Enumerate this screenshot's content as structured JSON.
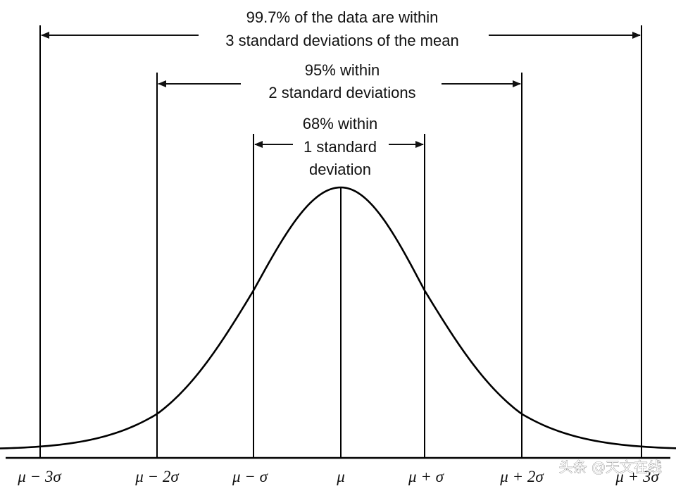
{
  "chart_data": {
    "type": "line",
    "title": "",
    "xlabel": "",
    "ylabel": "",
    "xlim": [
      -3.55,
      3.55
    ],
    "curve": "normal density",
    "x_ticks": [
      -3,
      -2,
      -1,
      0,
      1,
      2,
      3
    ],
    "tick_labels": [
      "μ − 3σ",
      "μ − 2σ",
      "μ − σ",
      "μ",
      "μ + σ",
      "μ + 2σ",
      "μ + 3σ"
    ],
    "intervals": [
      {
        "k": 1,
        "percent": 68,
        "lines": [
          "68% within",
          "1 standard",
          "deviation"
        ]
      },
      {
        "k": 2,
        "percent": 95,
        "lines": [
          "95% within",
          "2 standard deviations"
        ]
      },
      {
        "k": 3,
        "percent": 99.7,
        "lines": [
          "99.7% of the data are within",
          "3 standard deviations of the mean"
        ]
      }
    ]
  },
  "watermark": "头条 @天文在线"
}
